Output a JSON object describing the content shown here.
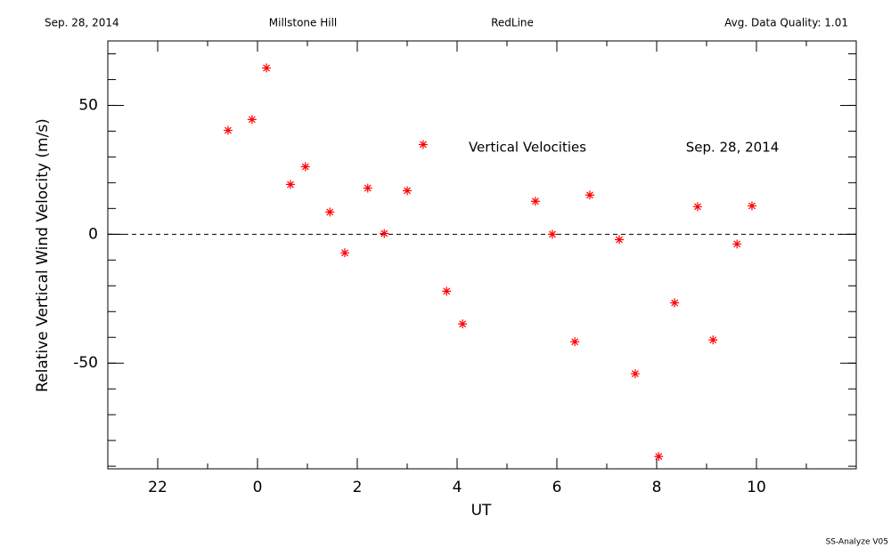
{
  "header": {
    "date": "Sep. 28, 2014",
    "site": "Millstone Hill",
    "instrument": "RedLine",
    "quality": "Avg. Data Quality: 1.01"
  },
  "footer": "SS-Analyze V05",
  "chart_data": {
    "type": "scatter",
    "xlabel": "UT",
    "ylabel": "Relative Vertical Wind Velocity (m/s)",
    "annotations": [
      "Vertical Velocities",
      "Sep. 28, 2014"
    ],
    "color": "#ff0000",
    "marker": "asterisk",
    "xlim": [
      -3,
      12
    ],
    "ylim": [
      -91,
      75
    ],
    "xticks": [
      {
        "value": -2,
        "label": "22"
      },
      0,
      2,
      4,
      6,
      8,
      10
    ],
    "yticks": [
      -50,
      0,
      50
    ],
    "reference_line": 0,
    "x": [
      -0.59,
      -0.11,
      0.18,
      0.66,
      0.96,
      1.45,
      1.75,
      2.21,
      2.54,
      3.0,
      3.32,
      3.79,
      4.11,
      5.57,
      5.91,
      6.36,
      6.66,
      7.25,
      7.57,
      8.04,
      8.36,
      8.82,
      9.13,
      9.61,
      9.91
    ],
    "values": [
      40.3,
      44.5,
      64.5,
      19.3,
      26.2,
      8.6,
      -7.2,
      17.9,
      0.3,
      16.9,
      34.8,
      -22.1,
      -34.8,
      12.8,
      0,
      -41.7,
      15.2,
      -2.1,
      -54.1,
      -86.2,
      -26.6,
      10.7,
      -41,
      -3.8,
      11
    ]
  }
}
